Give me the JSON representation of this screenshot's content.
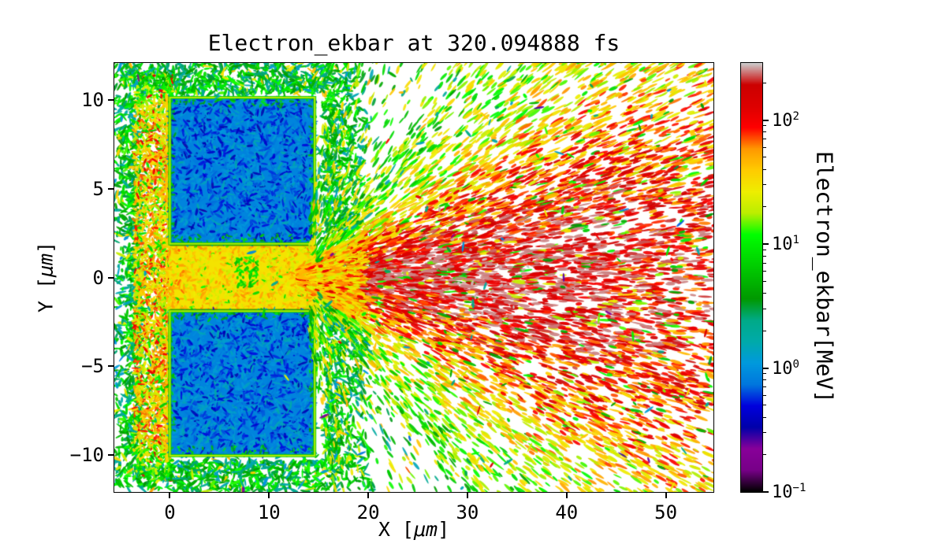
{
  "chart_data": {
    "type": "heatmap",
    "title": "Electron_ekbar at 320.094888 fs",
    "time_fs": "320.094888",
    "xlabel": {
      "pre": "X [",
      "unit": "μm",
      "post": "]"
    },
    "ylabel": {
      "pre": "Y [",
      "unit": "μm",
      "post": "]"
    },
    "xlim": [
      -5.6,
      54.8
    ],
    "ylim": [
      -12.1,
      12.1
    ],
    "xticks": [
      {
        "value": 0,
        "label": "0"
      },
      {
        "value": 10,
        "label": "10"
      },
      {
        "value": 20,
        "label": "20"
      },
      {
        "value": 30,
        "label": "30"
      },
      {
        "value": 40,
        "label": "40"
      },
      {
        "value": 50,
        "label": "50"
      }
    ],
    "yticks": [
      {
        "value": -10,
        "label": "−10"
      },
      {
        "value": -5,
        "label": "−5"
      },
      {
        "value": 0,
        "label": "0"
      },
      {
        "value": 5,
        "label": "5"
      },
      {
        "value": 10,
        "label": "10"
      }
    ],
    "grid": false,
    "colorbar": {
      "label": "Electron_ekbar[MeV]",
      "scale": "log",
      "vmin": 0.1,
      "vmax": 289,
      "ticks": [
        {
          "value": 0.1,
          "exp": "−1"
        },
        {
          "value": 1,
          "exp": "0"
        },
        {
          "value": 10,
          "exp": "1"
        },
        {
          "value": 100,
          "exp": "2"
        }
      ],
      "colormap": "nipy_spectral",
      "colormap_stops": [
        {
          "t": 0.0,
          "color": "#000000"
        },
        {
          "t": 0.05,
          "color": "#770088"
        },
        {
          "t": 0.1,
          "color": "#880099"
        },
        {
          "t": 0.15,
          "color": "#0000AA"
        },
        {
          "t": 0.2,
          "color": "#0000DD"
        },
        {
          "t": 0.25,
          "color": "#0077DD"
        },
        {
          "t": 0.3,
          "color": "#0099DD"
        },
        {
          "t": 0.35,
          "color": "#00AAAA"
        },
        {
          "t": 0.4,
          "color": "#00AA88"
        },
        {
          "t": 0.45,
          "color": "#009900"
        },
        {
          "t": 0.5,
          "color": "#00BB00"
        },
        {
          "t": 0.55,
          "color": "#00DD00"
        },
        {
          "t": 0.6,
          "color": "#00FF00"
        },
        {
          "t": 0.65,
          "color": "#BBEE00"
        },
        {
          "t": 0.7,
          "color": "#EEEE00"
        },
        {
          "t": 0.75,
          "color": "#FFCC00"
        },
        {
          "t": 0.8,
          "color": "#FF9900"
        },
        {
          "t": 0.85,
          "color": "#FF0000"
        },
        {
          "t": 0.9,
          "color": "#DD0000"
        },
        {
          "t": 0.95,
          "color": "#CC0000"
        },
        {
          "t": 1.0,
          "color": "#CCCCCC"
        }
      ]
    },
    "features": {
      "front_surface_plasma": {
        "x": [
          -3.6,
          0.2
        ],
        "y": [
          -11.5,
          11.5
        ],
        "energy_mev": [
          15,
          90
        ]
      },
      "target_block_top": {
        "x": [
          0,
          14.6
        ],
        "y": [
          1.9,
          10.15
        ],
        "energy_mev": [
          0.3,
          2
        ]
      },
      "target_block_bottom": {
        "x": [
          0,
          14.6
        ],
        "y": [
          -10.05,
          -1.9
        ],
        "energy_mev": [
          0.3,
          2
        ]
      },
      "channel": {
        "x": [
          0,
          14.6
        ],
        "y": [
          -1.9,
          1.9
        ],
        "energy_mev": [
          15,
          60
        ]
      },
      "halo": {
        "x": [
          -5.6,
          20
        ],
        "y": [
          -12.1,
          12.1
        ],
        "energy_mev": [
          1,
          14
        ]
      },
      "electron_fan": {
        "apex": [
          13.2,
          0
        ],
        "half_angle_deg": 33,
        "x_extent": 55,
        "core_energy_mev": [
          60,
          250
        ],
        "fringe_energy_mev": [
          5,
          60
        ]
      },
      "hot_spots_gray": {
        "x": [
          28,
          40
        ],
        "y": [
          -3,
          3
        ],
        "energy_mev": 280
      }
    },
    "colors": {
      "background": "#FFFFFF",
      "axes": "#000000"
    }
  }
}
